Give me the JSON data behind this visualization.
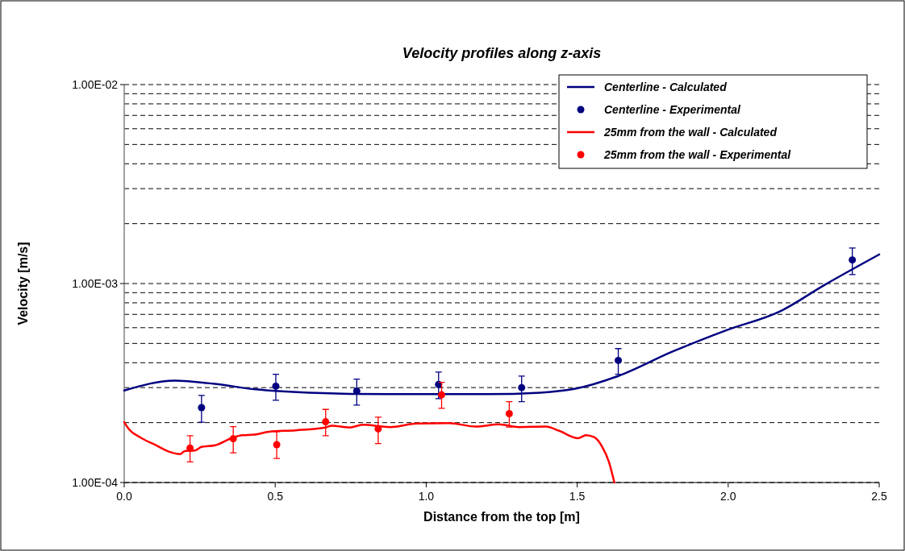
{
  "chart_data": {
    "type": "line",
    "title": "Velocity profiles along z-axis",
    "xlabel": "Distance from the top [m]",
    "ylabel": "Velocity [m/s]",
    "log": "y",
    "grid": "y",
    "legend": "top right",
    "xlim": [
      0,
      2.5
    ],
    "xticks": [
      {
        "value": 0,
        "label": "0.0"
      },
      {
        "value": 0.5,
        "label": "0.5"
      },
      {
        "value": 1,
        "label": "1.0"
      },
      {
        "value": 1.5,
        "label": "1.5"
      },
      {
        "value": 2,
        "label": "2.0"
      },
      {
        "value": 2.5,
        "label": "2.5"
      }
    ],
    "ylim": [
      0.0001,
      0.01
    ],
    "yticks": [
      {
        "value": 0.0001,
        "label": "1.00E-04"
      },
      {
        "value": 0.0002,
        "label": null
      },
      {
        "value": 0.0003,
        "label": null
      },
      {
        "value": 0.0004,
        "label": null
      },
      {
        "value": 0.0005,
        "label": null
      },
      {
        "value": 0.0006,
        "label": null
      },
      {
        "value": 0.0007,
        "label": null
      },
      {
        "value": 0.0008,
        "label": null
      },
      {
        "value": 0.0009,
        "label": null
      },
      {
        "value": 0.001,
        "label": "1.00E-03"
      },
      {
        "value": 0.002,
        "label": null
      },
      {
        "value": 0.003,
        "label": null
      },
      {
        "value": 0.004,
        "label": null
      },
      {
        "value": 0.005,
        "label": null
      },
      {
        "value": 0.006,
        "label": null
      },
      {
        "value": 0.007,
        "label": null
      },
      {
        "value": 0.008,
        "label": null
      },
      {
        "value": 0.009,
        "label": null
      },
      {
        "value": 0.01,
        "label": "1.00E-02"
      }
    ],
    "series": [
      {
        "name": "Centerline - Calculated",
        "color": "#000080",
        "x": [
          0,
          0.167,
          0.3,
          0.435,
          0.613,
          0.88,
          1.2,
          1.378,
          1.494,
          1.636,
          1.814,
          1.993,
          2.171,
          2.322,
          2.5
        ],
        "values": [
          0.00029,
          0.000325,
          0.000313,
          0.000294,
          0.000283,
          0.000278,
          0.000278,
          0.000283,
          0.000296,
          0.000343,
          0.000454,
          0.000582,
          0.000724,
          0.00099,
          0.0014
        ]
      },
      {
        "name": "Centerline - Experimental",
        "type": "scatter",
        "marker": "circle",
        "color": "#000080",
        "x": [
          0.256,
          0.502,
          0.77,
          1.041,
          1.316,
          1.636,
          2.411
        ],
        "values": [
          0.000238,
          0.000305,
          0.000288,
          0.000311,
          0.0003,
          0.000411,
          0.001315
        ],
        "errors": [
          [
            0.000201,
            0.000274
          ],
          [
            0.000259,
            0.00035
          ],
          [
            0.000245,
            0.000331
          ],
          [
            0.000264,
            0.000359
          ],
          [
            0.000255,
            0.000343
          ],
          [
            0.00035,
            0.000471
          ],
          [
            0.00111,
            0.00151
          ]
        ]
      },
      {
        "name": "25mm from the wall -  Calculated",
        "color": "#ff0000",
        "x": [
          0,
          0.016,
          0.052,
          0.105,
          0.154,
          0.185,
          0.2,
          0.234,
          0.256,
          0.301,
          0.363,
          0.39,
          0.43,
          0.479,
          0.568,
          0.666,
          0.687,
          0.746,
          0.79,
          0.88,
          0.969,
          1.076,
          1.165,
          1.24,
          1.307,
          1.396,
          1.44,
          1.503,
          1.529,
          1.556,
          1.583,
          1.605,
          1.623
        ],
        "values": [
          0.000201,
          0.000185,
          0.000169,
          0.000154,
          0.000142,
          0.000139,
          0.000144,
          0.000145,
          0.000151,
          0.000154,
          0.000169,
          0.000173,
          0.000174,
          0.00018,
          0.000183,
          0.000189,
          0.000193,
          0.000189,
          0.000195,
          0.00019,
          0.000198,
          0.000199,
          0.000191,
          0.000196,
          0.00019,
          0.000191,
          0.000182,
          0.000167,
          0.000173,
          0.000169,
          0.000151,
          0.000127,
          0.0001
        ]
      },
      {
        "name": "25mm from the wall - Experimental",
        "type": "scatter",
        "marker": "circle",
        "color": "#ff0000",
        "x": [
          0.218,
          0.361,
          0.505,
          0.667,
          0.841,
          1.051,
          1.275
        ],
        "values": [
          0.000149,
          0.000166,
          0.000155,
          0.000202,
          0.000186,
          0.000276,
          0.000222
        ],
        "errors": [
          [
            0.000127,
            0.000172
          ],
          [
            0.000141,
            0.000191
          ],
          [
            0.000132,
            0.00018
          ],
          [
            0.000172,
            0.000233
          ],
          [
            0.000157,
            0.000213
          ],
          [
            0.000236,
            0.000319
          ],
          [
            0.00019,
            0.000255
          ]
        ]
      }
    ]
  }
}
